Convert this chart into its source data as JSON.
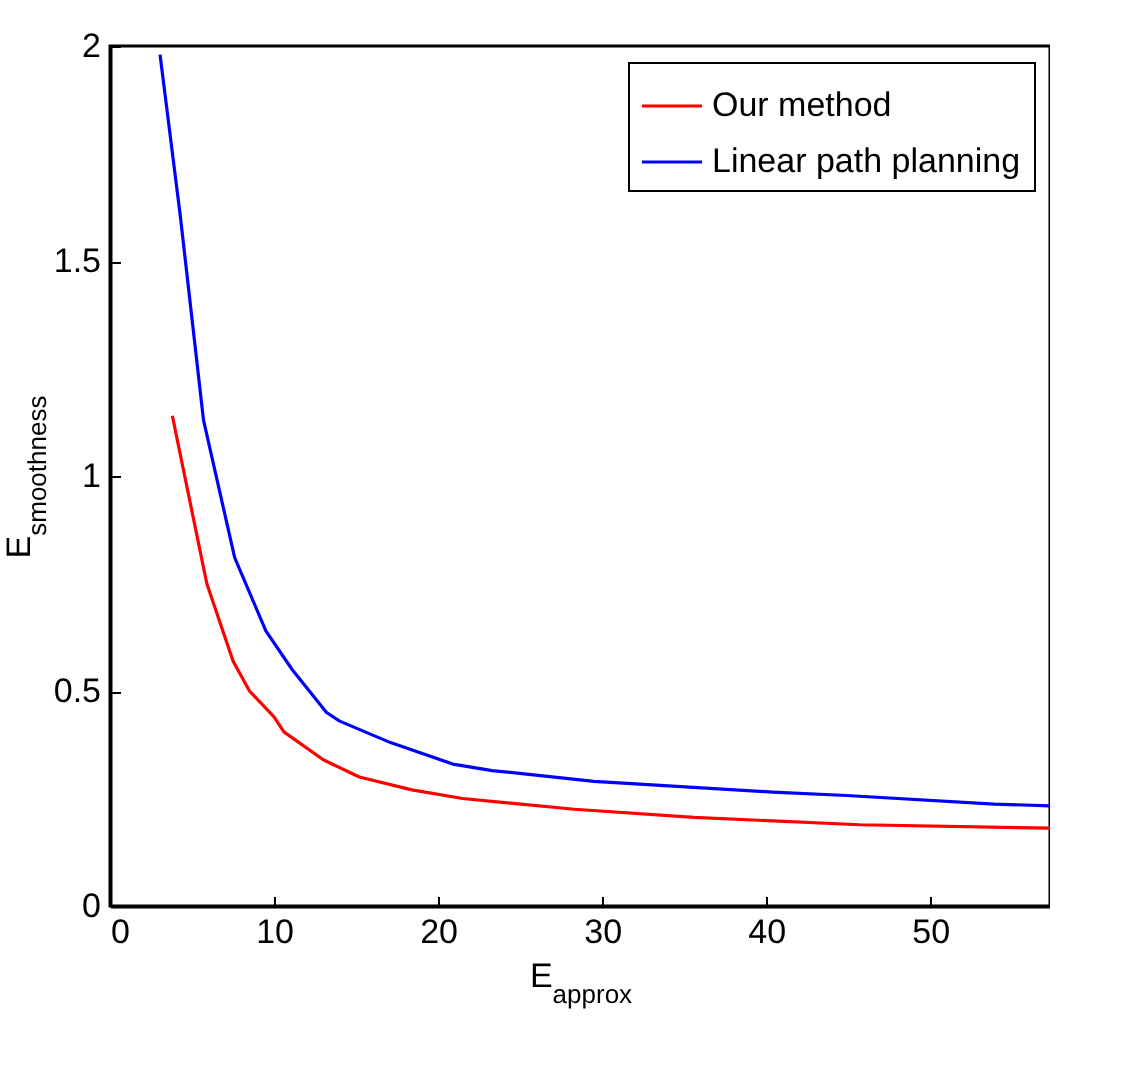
{
  "chart_data": {
    "type": "line",
    "xlabel": "E$_{approx}$",
    "ylabel": "E$_{smoothness}$",
    "xlim": [
      0,
      57.3
    ],
    "xticks": [
      0,
      10,
      20,
      30,
      40,
      50
    ],
    "ylim": [
      0,
      2
    ],
    "yticks": [
      0,
      0.5,
      1,
      1.5,
      2
    ],
    "grid": false,
    "legend": "top right",
    "series": [
      {
        "name": "Our method",
        "color": "#ff0000",
        "x": [
          3.8,
          5.9,
          7.5,
          8.5,
          10.0,
          10.6,
          13.0,
          15.2,
          18.4,
          21.5,
          28.3,
          35.6,
          45.7,
          57.3
        ],
        "values": [
          1.14,
          0.75,
          0.57,
          0.5,
          0.44,
          0.405,
          0.34,
          0.3,
          0.27,
          0.25,
          0.225,
          0.206,
          0.189,
          0.181
        ]
      },
      {
        "name": "Linear path planning",
        "color": "#0000ff",
        "x": [
          3.05,
          4.27,
          5.7,
          7.6,
          9.5,
          11.1,
          13.2,
          14.0,
          17.1,
          20.9,
          23.3,
          29.5,
          40.4,
          44.9,
          53.9,
          57.3
        ],
        "values": [
          1.98,
          1.61,
          1.13,
          0.81,
          0.64,
          0.55,
          0.45,
          0.43,
          0.38,
          0.33,
          0.315,
          0.29,
          0.265,
          0.257,
          0.237,
          0.233
        ]
      }
    ]
  }
}
